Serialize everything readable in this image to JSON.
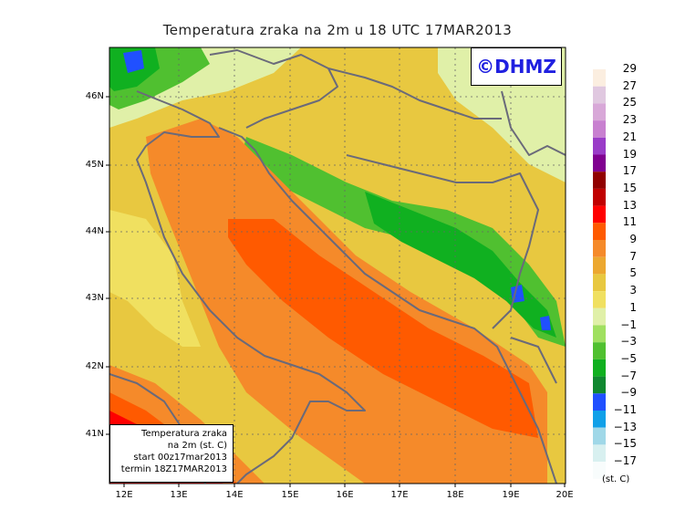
{
  "title": "Temperatura zraka na 2m u 18 UTC 17MAR2013",
  "logo_text": "©DHMZ",
  "info": {
    "line1": "Temperatura zraka",
    "line2": "na 2m (st. C)",
    "line3": "start 00z17mar2013",
    "line4": "termin 18Z17MAR2013"
  },
  "lat_labels": [
    "46N",
    "45N",
    "44N",
    "43N",
    "42N",
    "41N"
  ],
  "lon_labels": [
    "12E",
    "13E",
    "14E",
    "15E",
    "16E",
    "17E",
    "18E",
    "19E",
    "20E"
  ],
  "legend": {
    "unit": "(st. C)",
    "labels": [
      "29",
      "27",
      "25",
      "23",
      "21",
      "19",
      "17",
      "15",
      "13",
      "11",
      "9",
      "7",
      "5",
      "3",
      "1",
      "−1",
      "−3",
      "−5",
      "−7",
      "−9",
      "−11",
      "−13",
      "−15",
      "−17"
    ],
    "colors": [
      "#fbeee0",
      "#e0c8e0",
      "#d8a8d8",
      "#c880d0",
      "#9a3cc8",
      "#800090",
      "#900000",
      "#c00000",
      "#ff0000",
      "#ff5a00",
      "#f58a2a",
      "#eca830",
      "#e8c840",
      "#f0e060",
      "#e0f0a8",
      "#a0e060",
      "#50c030",
      "#10b020",
      "#108830",
      "#2050ff",
      "#10a0e8",
      "#a0d8e8",
      "#d8f0f0",
      "#f8fcfc"
    ]
  }
}
